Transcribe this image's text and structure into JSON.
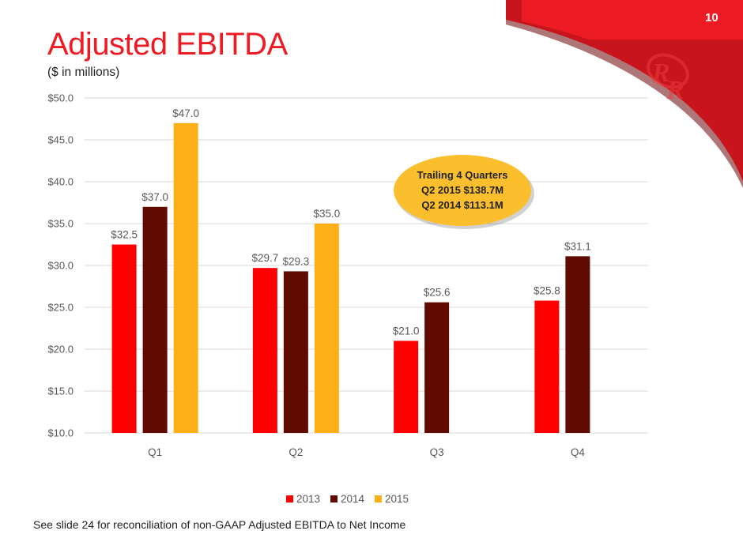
{
  "slide": {
    "number": "10",
    "title": "Adjusted EBITDA",
    "subtitle": "($ in millions)",
    "footnote": "See slide 24 for reconciliation of non-GAAP Adjusted EBITDA to Net Income",
    "brand_color": "#ed1c24",
    "logo": "rr-monogram-logo"
  },
  "callout": {
    "lines": [
      "Trailing 4 Quarters",
      "Q2 2015 $138.7M",
      "Q2 2014 $113.1M"
    ],
    "color": "#fbbf2d"
  },
  "chart_data": {
    "type": "bar",
    "title": "Adjusted EBITDA",
    "subtitle": "($ in millions)",
    "xlabel": "",
    "ylabel": "",
    "categories": [
      "Q1",
      "Q2",
      "Q3",
      "Q4"
    ],
    "series": [
      {
        "name": "2013",
        "color": "#ff0000",
        "values": [
          32.5,
          29.7,
          21.0,
          25.8
        ],
        "labels": [
          "$32.5",
          "$29.7",
          "$21.0",
          "$25.8"
        ]
      },
      {
        "name": "2014",
        "color": "#600a00",
        "values": [
          37.0,
          29.3,
          25.6,
          31.1
        ],
        "labels": [
          "$37.0",
          "$29.3",
          "$25.6",
          "$31.1"
        ]
      },
      {
        "name": "2015",
        "color": "#fcaf17",
        "values": [
          47.0,
          35.0,
          null,
          null
        ],
        "labels": [
          "$47.0",
          "$35.0",
          null,
          null
        ]
      }
    ],
    "ylim": [
      10,
      50
    ],
    "yticks": [
      10,
      15,
      20,
      25,
      30,
      35,
      40,
      45,
      50
    ],
    "ytick_labels": [
      "$10.0",
      "$15.0",
      "$20.0",
      "$25.0",
      "$30.0",
      "$35.0",
      "$40.0",
      "$45.0",
      "$50.0"
    ],
    "grid": true,
    "legend": {
      "position": "bottom",
      "entries": [
        "2013",
        "2014",
        "2015"
      ]
    }
  }
}
